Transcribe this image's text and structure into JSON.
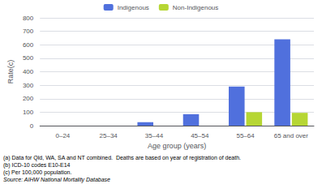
{
  "chart_data": {
    "type": "bar",
    "categories": [
      "0–24",
      "25–34",
      "35–44",
      "45–54",
      "55–64",
      "65 and over"
    ],
    "series": [
      {
        "name": "Indigenous",
        "values": [
          0,
          0,
          25,
          85,
          290,
          640
        ]
      },
      {
        "name": "Non-Ind­igenous",
        "values": [
          0,
          0,
          0,
          0,
          100,
          95
        ]
      }
    ],
    "xlabel": "Age group (years)",
    "ylabel": "Rate(c)",
    "ylim": [
      0,
      800
    ],
    "yticks": [
      0,
      100,
      200,
      300,
      400,
      500,
      600,
      700,
      800
    ],
    "grid": true,
    "legend": "upper center",
    "annotations": [
      "(a) Data for Qld, WA, SA and NT combined.  Deaths are based on year of registration of death.",
      "(b) ICD-10 codes E10-E14",
      "(c) Per 100,000 population.",
      "Source: AIHW National Mortality Database"
    ]
  }
}
